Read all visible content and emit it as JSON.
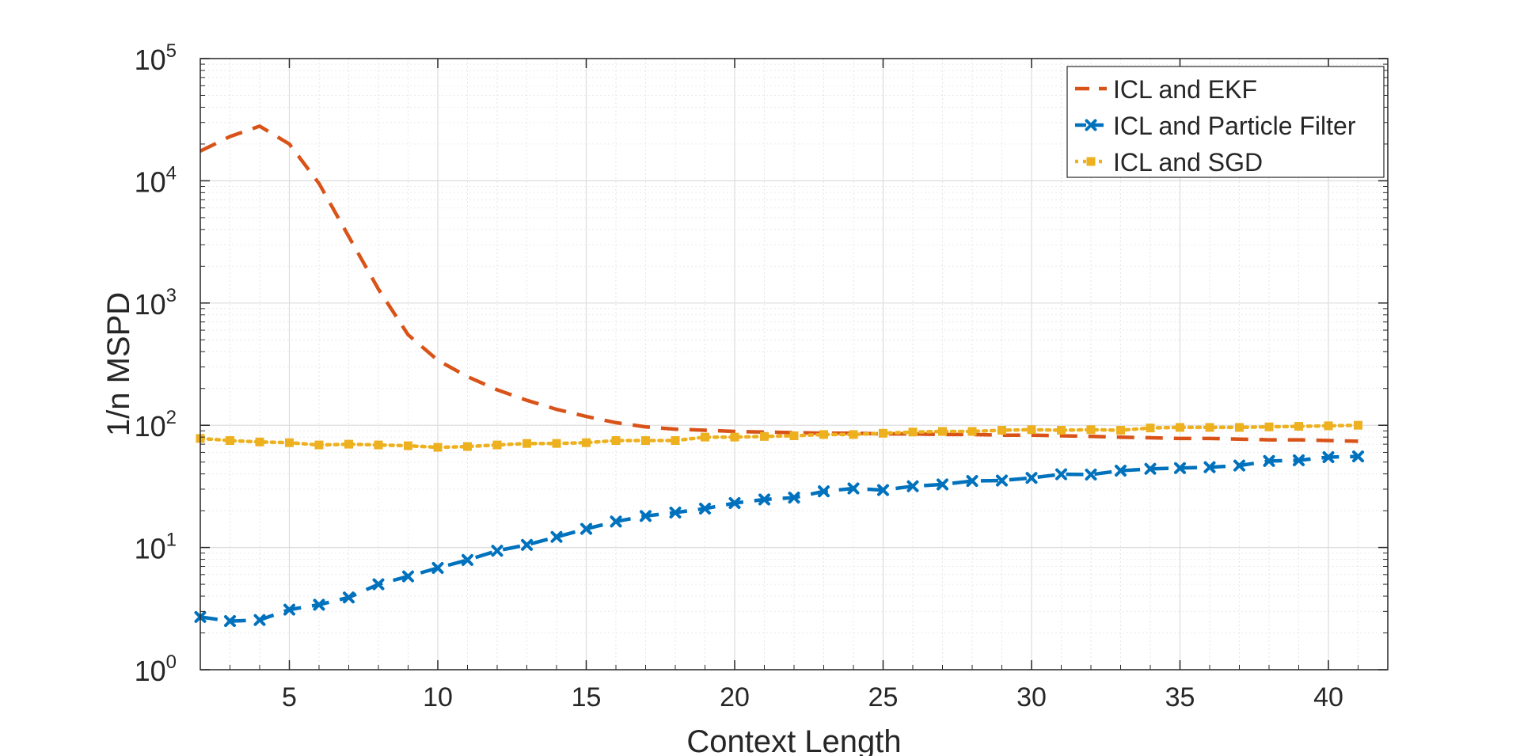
{
  "chart_data": {
    "type": "line",
    "title": "",
    "xlabel": "Context Length",
    "ylabel": "1/n MSPD",
    "xlim": [
      2,
      42
    ],
    "ylim_log10": [
      0,
      5
    ],
    "xticks": [
      5,
      10,
      15,
      20,
      25,
      30,
      35,
      40
    ],
    "yticks": [
      {
        "base": "10",
        "exp": "0"
      },
      {
        "base": "10",
        "exp": "1"
      },
      {
        "base": "10",
        "exp": "2"
      },
      {
        "base": "10",
        "exp": "3"
      },
      {
        "base": "10",
        "exp": "4"
      },
      {
        "base": "10",
        "exp": "5"
      }
    ],
    "grid": true,
    "legend_position": "top-right",
    "x": [
      2,
      3,
      4,
      5,
      6,
      7,
      8,
      9,
      10,
      11,
      12,
      13,
      14,
      15,
      16,
      17,
      18,
      19,
      20,
      21,
      22,
      23,
      24,
      25,
      26,
      27,
      28,
      29,
      30,
      31,
      32,
      33,
      34,
      35,
      36,
      37,
      38,
      39,
      40,
      41
    ],
    "series": [
      {
        "name": "ICL and EKF",
        "color": "#D95319",
        "style": "dashed",
        "marker": "none",
        "values": [
          17500,
          23000,
          28000,
          20000,
          9500,
          3500,
          1300,
          550,
          340,
          250,
          195,
          160,
          135,
          118,
          105,
          97,
          93,
          91,
          89,
          88,
          87,
          86,
          86,
          85,
          85,
          84,
          84,
          83,
          83,
          82,
          81,
          80,
          79,
          78,
          78,
          77,
          76,
          76,
          75,
          74
        ]
      },
      {
        "name": "ICL and Particle Filter",
        "color": "#0072BD",
        "style": "dashed",
        "marker": "x",
        "values": [
          2.7,
          2.5,
          2.55,
          3.1,
          3.4,
          3.9,
          5.0,
          5.8,
          6.8,
          7.9,
          9.4,
          10.5,
          12.2,
          14.2,
          16.3,
          18.1,
          19.3,
          20.8,
          23.1,
          24.7,
          25.6,
          28.8,
          30.4,
          29.5,
          31.7,
          32.8,
          35.0,
          35.3,
          37.1,
          39.7,
          39.5,
          42.5,
          44.0,
          44.6,
          45.4,
          46.8,
          51.0,
          51.7,
          54.8,
          55.6
        ]
      },
      {
        "name": "ICL and SGD",
        "color": "#EDB120",
        "style": "dotted",
        "marker": "square",
        "values": [
          78,
          75,
          73,
          72,
          69,
          70,
          69,
          68,
          66,
          67,
          69,
          71,
          71,
          72,
          75,
          75,
          75,
          80,
          80,
          81,
          82,
          84,
          84,
          86,
          88,
          89,
          89,
          91,
          92,
          91,
          92,
          91,
          95,
          96,
          96,
          96,
          97,
          98,
          99,
          100
        ]
      }
    ]
  }
}
